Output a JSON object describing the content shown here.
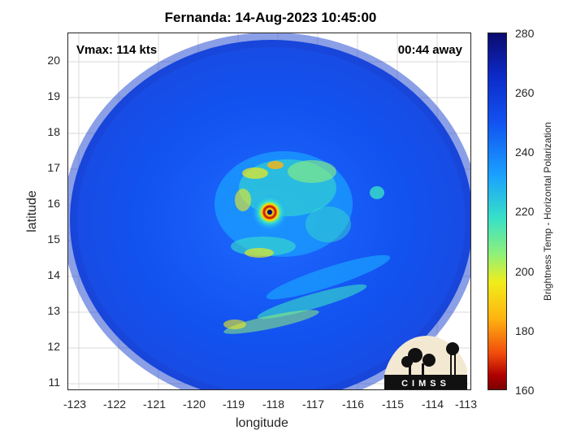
{
  "title": "Fernanda: 14-Aug-2023 10:45:00",
  "vmax": "Vmax: 114 kts",
  "away": "00:44 away",
  "axes": {
    "xlabel": "longitude",
    "ylabel": "latitude",
    "xlim": [
      -123.2,
      -112.9
    ],
    "ylim": [
      10.8,
      20.8
    ],
    "xticks": [
      "-123",
      "-122",
      "-121",
      "-120",
      "-119",
      "-118",
      "-117",
      "-116",
      "-115",
      "-114",
      "-113"
    ],
    "yticks": [
      "20",
      "19",
      "18",
      "17",
      "16",
      "15",
      "14",
      "13",
      "12",
      "11"
    ]
  },
  "colorbar": {
    "label": "Brightness Temp - Horizontal Polarization",
    "ticks": [
      "280",
      "260",
      "240",
      "220",
      "200",
      "180",
      "160"
    ],
    "range": [
      160,
      280
    ]
  },
  "storm_center": {
    "lon": -117.9,
    "lat": 15.8
  },
  "logo": {
    "text": "CIMSS"
  }
}
